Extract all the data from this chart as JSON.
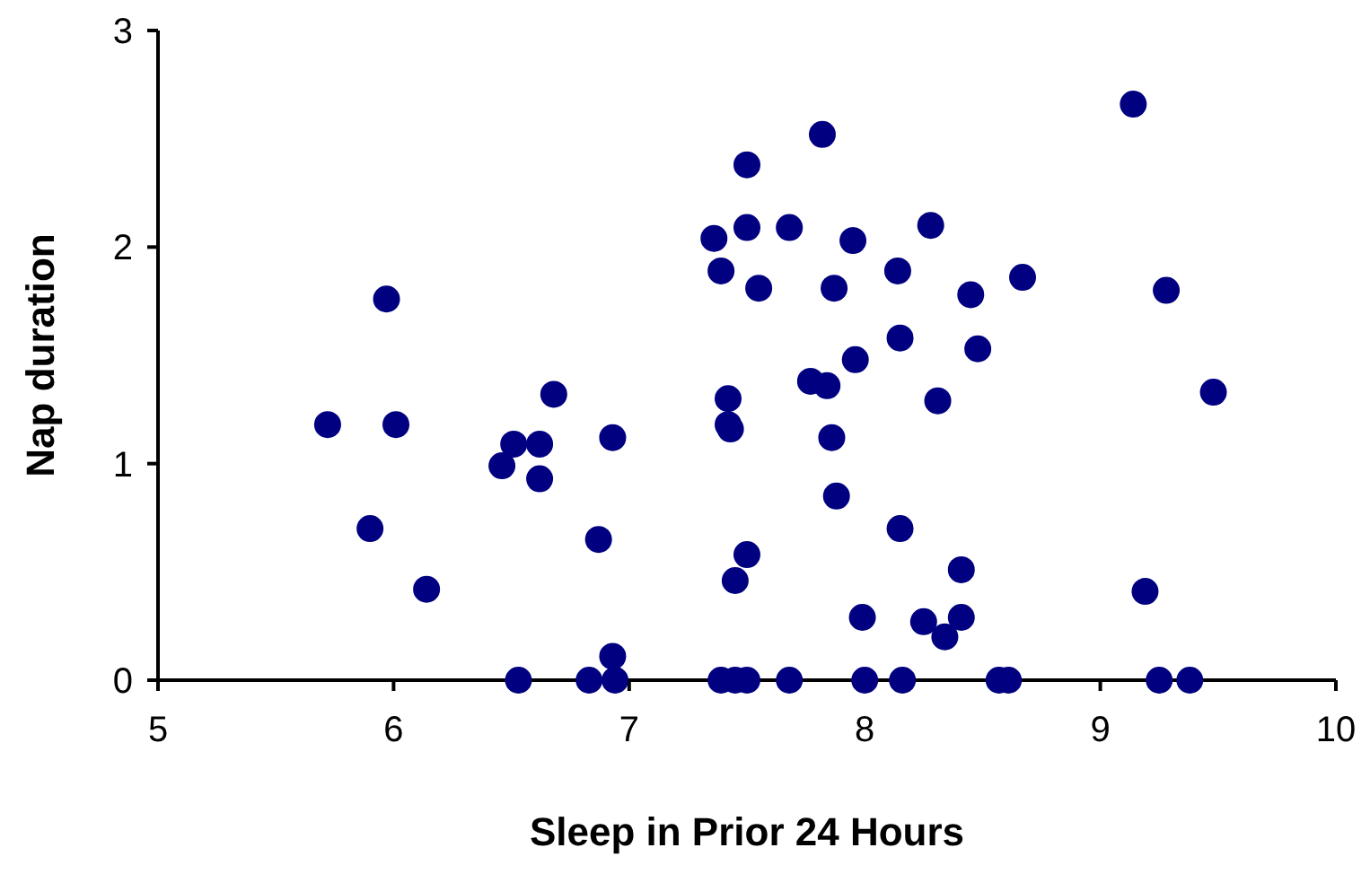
{
  "chart_data": {
    "type": "scatter",
    "xlabel": "Sleep in Prior 24 Hours",
    "ylabel": "Nap duration",
    "xlim": [
      5,
      10
    ],
    "ylim": [
      0,
      3
    ],
    "xticks": [
      5,
      6,
      7,
      8,
      9,
      10
    ],
    "yticks": [
      0,
      1,
      2,
      3
    ],
    "marker": "circle",
    "grid": false,
    "series": [
      {
        "color": "#000080",
        "x": [
          5.72,
          5.9,
          5.97,
          6.01,
          6.14,
          6.46,
          6.51,
          6.53,
          6.62,
          6.62,
          6.68,
          6.83,
          6.87,
          6.93,
          6.93,
          6.94,
          7.36,
          7.39,
          7.39,
          7.42,
          7.42,
          7.43,
          7.45,
          7.45,
          7.5,
          7.5,
          7.5,
          7.5,
          7.55,
          7.68,
          7.68,
          7.77,
          7.82,
          7.84,
          7.86,
          7.87,
          7.88,
          7.95,
          7.96,
          7.99,
          8.0,
          8.14,
          8.15,
          8.15,
          8.16,
          8.28,
          8.25,
          8.31,
          8.34,
          8.41,
          8.41,
          8.45,
          8.48,
          8.57,
          8.61,
          8.67,
          9.14,
          9.19,
          9.25,
          9.28,
          9.38,
          9.48
        ],
        "values": [
          1.18,
          0.7,
          1.76,
          1.18,
          0.42,
          0.99,
          1.09,
          0,
          1.09,
          0.93,
          1.32,
          0,
          0.65,
          1.12,
          0.11,
          0,
          2.04,
          1.89,
          0,
          1.3,
          1.18,
          1.16,
          0.46,
          0,
          2.38,
          2.09,
          0.58,
          0,
          1.81,
          2.09,
          0,
          1.38,
          2.52,
          1.36,
          1.12,
          1.81,
          0.85,
          2.03,
          1.48,
          0.29,
          0,
          1.89,
          1.58,
          0.7,
          0,
          2.1,
          0.27,
          1.29,
          0.2,
          0.29,
          0.51,
          1.78,
          1.53,
          0,
          0,
          1.86,
          2.66,
          0.41,
          0,
          1.8,
          0,
          1.33
        ]
      }
    ]
  }
}
